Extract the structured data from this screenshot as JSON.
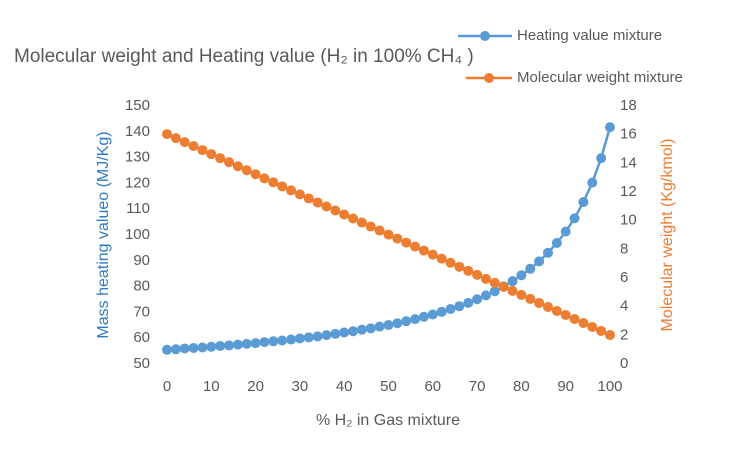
{
  "chart_data": {
    "type": "line",
    "title": "Molecular weight and Heating value (H₂ in 100% CH₄ )",
    "x_label": "% H₂ in Gas mixture",
    "y_label": "Mass heating valueo (MJ/Kg)",
    "y2_label": "Molecular weight (Kg/kmol)",
    "x": [
      0,
      2,
      4,
      6,
      8,
      10,
      12,
      14,
      16,
      18,
      20,
      22,
      24,
      26,
      28,
      30,
      32,
      34,
      36,
      38,
      40,
      42,
      44,
      46,
      48,
      50,
      52,
      54,
      56,
      58,
      60,
      62,
      64,
      66,
      68,
      70,
      72,
      74,
      76,
      78,
      80,
      82,
      84,
      86,
      88,
      90,
      92,
      94,
      96,
      98,
      100
    ],
    "series": [
      {
        "name": "Heating value mixture",
        "color": "#5b9bd5",
        "axis": "y",
        "values": [
          55.5,
          55.7,
          56.0,
          56.2,
          56.4,
          56.7,
          57.0,
          57.2,
          57.5,
          57.8,
          58.1,
          58.5,
          58.8,
          59.1,
          59.5,
          59.9,
          60.3,
          60.7,
          61.2,
          61.7,
          62.2,
          62.7,
          63.3,
          63.8,
          64.5,
          65.1,
          65.8,
          66.6,
          67.4,
          68.3,
          69.2,
          70.2,
          71.3,
          72.4,
          73.7,
          75.1,
          76.6,
          78.2,
          80.1,
          82.1,
          84.4,
          86.9,
          89.8,
          93.1,
          96.9,
          101.3,
          106.5,
          112.8,
          120.3,
          129.8,
          141.8
        ]
      },
      {
        "name": "Molecular weight mixture",
        "color": "#ed7d31",
        "axis": "y2",
        "values": [
          16.04,
          15.76,
          15.48,
          15.2,
          14.92,
          14.64,
          14.36,
          14.08,
          13.8,
          13.52,
          13.24,
          12.95,
          12.67,
          12.39,
          12.11,
          11.83,
          11.55,
          11.27,
          10.99,
          10.71,
          10.43,
          10.15,
          9.87,
          9.59,
          9.31,
          9.03,
          8.75,
          8.47,
          8.19,
          7.91,
          7.63,
          7.35,
          7.06,
          6.78,
          6.5,
          6.22,
          5.94,
          5.66,
          5.38,
          5.1,
          4.82,
          4.54,
          4.26,
          3.98,
          3.7,
          3.42,
          3.14,
          2.86,
          2.58,
          2.3,
          2.02
        ]
      }
    ],
    "xlim": [
      0,
      100
    ],
    "xticks": [
      0,
      10,
      20,
      30,
      40,
      50,
      60,
      70,
      80,
      90,
      100
    ],
    "ylim": [
      50,
      150
    ],
    "yticks": [
      50,
      60,
      70,
      80,
      90,
      100,
      110,
      120,
      130,
      140,
      150
    ],
    "y2lim": [
      0,
      18
    ],
    "y2ticks": [
      0,
      2,
      4,
      6,
      8,
      10,
      12,
      14,
      16,
      18
    ],
    "y_label_color": "#2e7bc4",
    "y2_label_color": "#ed7d31",
    "legend": "top-right"
  }
}
